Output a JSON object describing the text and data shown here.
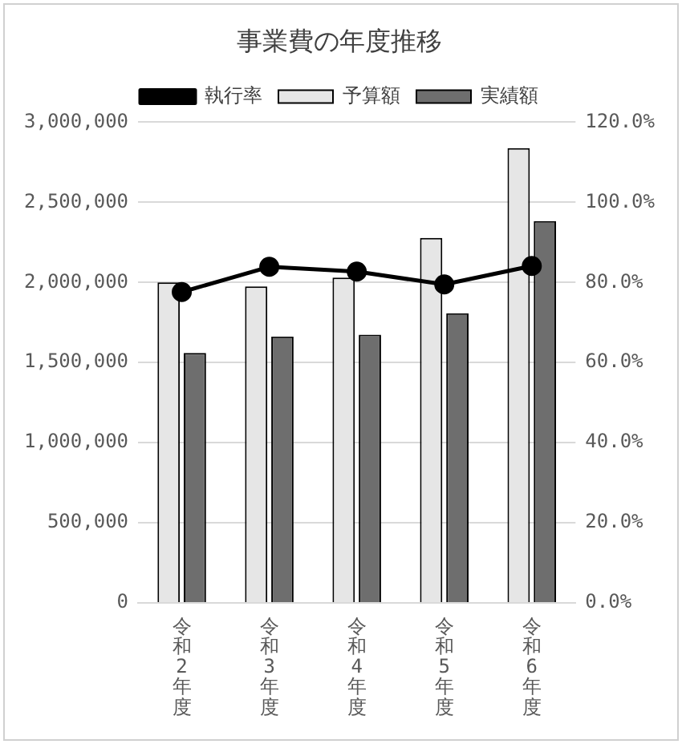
{
  "chart_data": {
    "type": "bar",
    "title": "事業費の年度推移",
    "categories": [
      "令和2年度",
      "令和3年度",
      "令和4年度",
      "令和5年度",
      "令和6年度"
    ],
    "series": [
      {
        "name": "予算額",
        "color": "#e6e6e6",
        "values": [
          2000000,
          1975000,
          2030000,
          2278000,
          2838000
        ]
      },
      {
        "name": "実績額",
        "color": "#6e6e6e",
        "values": [
          1560000,
          1662000,
          1673000,
          1808000,
          2383000
        ]
      },
      {
        "name": "執行率",
        "type": "line",
        "axis": "y2",
        "color": "#000000",
        "values": [
          77.6,
          83.9,
          82.7,
          79.5,
          84.1
        ]
      }
    ],
    "ylim": [
      0,
      3000000
    ],
    "yticks": [
      {
        "value": 0,
        "label": "0"
      },
      {
        "value": 500000,
        "label": "500,000"
      },
      {
        "value": 1000000,
        "label": "1,000,000"
      },
      {
        "value": 1500000,
        "label": "1,500,000"
      },
      {
        "value": 2000000,
        "label": "2,000,000"
      },
      {
        "value": 2500000,
        "label": "2,500,000"
      },
      {
        "value": 3000000,
        "label": "3,000,000"
      }
    ],
    "y2lim": [
      0,
      120
    ],
    "y2ticks": [
      {
        "value": 0,
        "label": "0.0%"
      },
      {
        "value": 20,
        "label": "20.0%"
      },
      {
        "value": 40,
        "label": "40.0%"
      },
      {
        "value": 60,
        "label": "60.0%"
      },
      {
        "value": 80,
        "label": "80.0%"
      },
      {
        "value": 100,
        "label": "100.0%"
      },
      {
        "value": 120,
        "label": "120.0%"
      }
    ],
    "grid": "y",
    "legend": "top",
    "marker": "circle",
    "line_style": "solid"
  }
}
